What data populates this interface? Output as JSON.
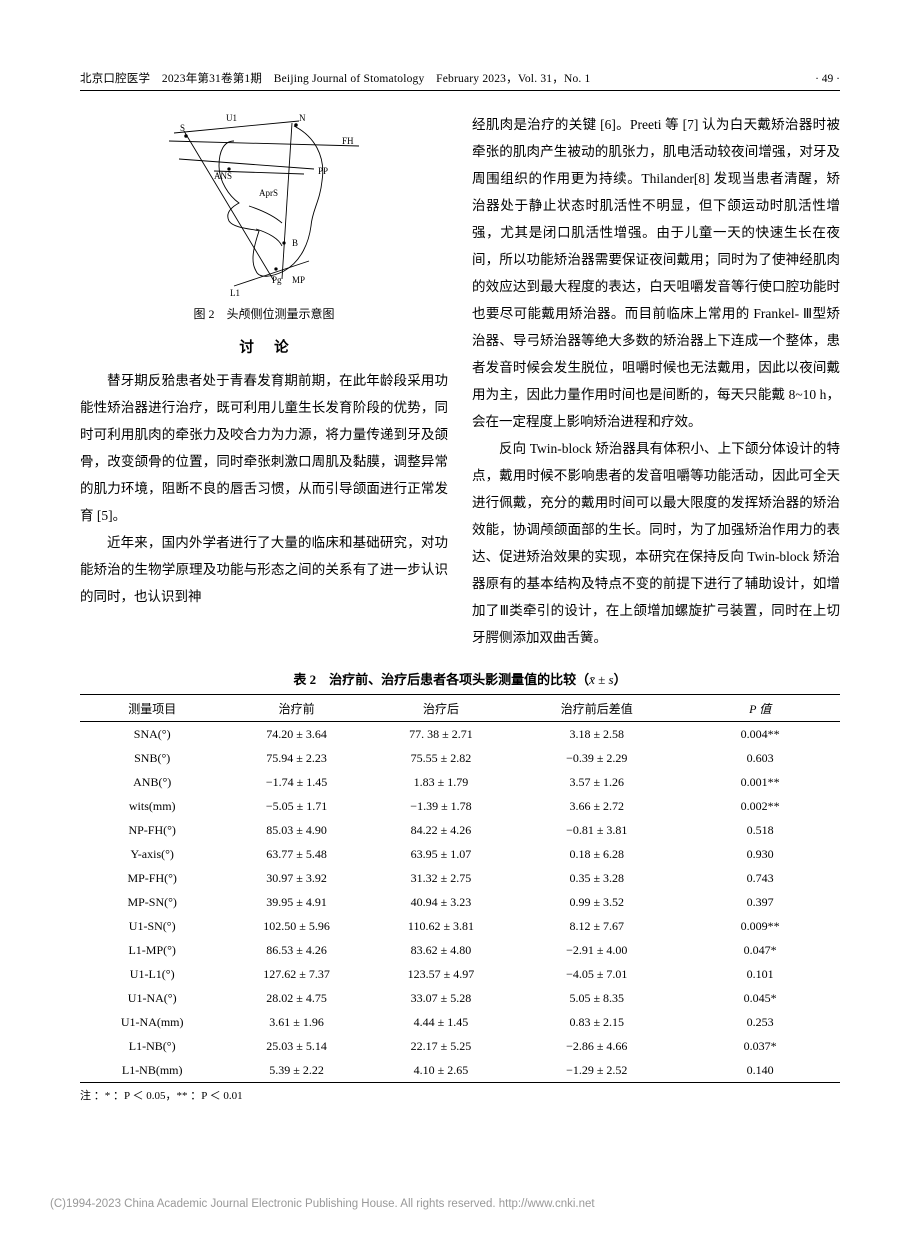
{
  "header": {
    "left": "北京口腔医学　2023年第31卷第1期　Beijing Journal of Stomatology　February 2023，Vol. 31，No. 1",
    "page": "· 49 ·"
  },
  "figure": {
    "caption": "图 2　头颅侧位测量示意图",
    "labels": {
      "S": "S",
      "U1": "U1",
      "N": "N",
      "FH": "FH",
      "PP": "PP",
      "ANS": "ANS",
      "AprS": "AprS",
      "B": "B",
      "Pg": "Pg",
      "L1": "L1",
      "MP": "MP"
    },
    "stroke": "#000000"
  },
  "discussion_heading": "讨论",
  "left_paragraphs": [
    "替牙期反𬌗患者处于青春发育期前期，在此年龄段采用功能性矫治器进行治疗，既可利用儿童生长发育阶段的优势，同时可利用肌肉的牵张力及咬合力为力源，将力量传递到牙及颌骨，改变颌骨的位置，同时牵张刺激口周肌及黏膜，调整异常的肌力环境，阻断不良的唇舌习惯，从而引导颌面进行正常发育 [5]。",
    "近年来，国内外学者进行了大量的临床和基础研究，对功能矫治的生物学原理及功能与形态之间的关系有了进一步认识的同时，也认识到神"
  ],
  "right_paragraphs": [
    "经肌肉是治疗的关键 [6]。Preeti 等 [7] 认为白天戴矫治器时被牵张的肌肉产生被动的肌张力，肌电活动较夜间增强，对牙及周围组织的作用更为持续。Thilander[8] 发现当患者清醒，矫治器处于静止状态时肌活性不明显，但下颌运动时肌活性增强，尤其是闭口肌活性增强。由于儿童一天的快速生长在夜间，所以功能矫治器需要保证夜间戴用；同时为了使神经肌肉的效应达到最大程度的表达，白天咀嚼发音等行使口腔功能时也要尽可能戴用矫治器。而目前临床上常用的 Frankel- Ⅲ型矫治器、导弓矫治器等绝大多数的矫治器上下连成一个整体，患者发音时候会发生脱位，咀嚼时候也无法戴用，因此以夜间戴用为主，因此力量作用时间也是间断的，每天只能戴 8~10 h，会在一定程度上影响矫治进程和疗效。",
    "反向 Twin-block 矫治器具有体积小、上下颌分体设计的特点，戴用时候不影响患者的发音咀嚼等功能活动，因此可全天进行佩戴，充分的戴用时间可以最大限度的发挥矫治器的矫治效能，协调颅颌面部的生长。同时，为了加强矫治作用力的表达、促进矫治效果的实现，本研究在保持反向 Twin-block 矫治器原有的基本结构及特点不变的前提下进行了辅助设计，如增加了Ⅲ类牵引的设计，在上颌增加螺旋扩弓装置，同时在上切牙腭侧添加双曲舌簧。"
  ],
  "table": {
    "caption_prefix": "表 2",
    "caption_text": "治疗前、治疗后患者各项头影测量值的比较（",
    "caption_stat": "x̄ ± s",
    "caption_suffix": "）",
    "columns": [
      "测量项目",
      "治疗前",
      "治疗后",
      "治疗前后差值",
      "P 值"
    ],
    "rows": [
      [
        "SNA(°)",
        "74.20 ± 3.64",
        "77. 38 ± 2.71",
        "3.18 ± 2.58",
        "0.004**"
      ],
      [
        "SNB(°)",
        "75.94 ± 2.23",
        "75.55 ± 2.82",
        "−0.39 ± 2.29",
        "0.603"
      ],
      [
        "ANB(°)",
        "−1.74 ± 1.45",
        "1.83 ± 1.79",
        "3.57 ± 1.26",
        "0.001**"
      ],
      [
        "wits(mm)",
        "−5.05 ± 1.71",
        "−1.39 ± 1.78",
        "3.66 ± 2.72",
        "0.002**"
      ],
      [
        "NP-FH(°)",
        "85.03 ± 4.90",
        "84.22 ± 4.26",
        "−0.81 ± 3.81",
        "0.518"
      ],
      [
        "Y-axis(°)",
        "63.77 ± 5.48",
        "63.95 ± 1.07",
        "0.18 ± 6.28",
        "0.930"
      ],
      [
        "MP-FH(°)",
        "30.97 ± 3.92",
        "31.32 ± 2.75",
        "0.35 ± 3.28",
        "0.743"
      ],
      [
        "MP-SN(°)",
        "39.95 ± 4.91",
        "40.94 ± 3.23",
        "0.99 ± 3.52",
        "0.397"
      ],
      [
        "U1-SN(°)",
        "102.50 ± 5.96",
        "110.62 ± 3.81",
        "8.12 ± 7.67",
        "0.009**"
      ],
      [
        "L1-MP(°)",
        "86.53 ± 4.26",
        "83.62 ± 4.80",
        "−2.91 ± 4.00",
        "0.047*"
      ],
      [
        "U1-L1(°)",
        "127.62 ± 7.37",
        "123.57 ± 4.97",
        "−4.05 ± 7.01",
        "0.101"
      ],
      [
        "U1-NA(°)",
        "28.02 ± 4.75",
        "33.07 ± 5.28",
        "5.05 ± 8.35",
        "0.045*"
      ],
      [
        "U1-NA(mm)",
        "3.61 ± 1.96",
        "4.44 ± 1.45",
        "0.83 ± 2.15",
        "0.253"
      ],
      [
        "L1-NB(°)",
        "25.03 ± 5.14",
        "22.17 ± 5.25",
        "−2.86 ± 4.66",
        "0.037*"
      ],
      [
        "L1-NB(mm)",
        "5.39 ± 2.22",
        "4.10 ± 2.65",
        "−1.29 ± 2.52",
        "0.140"
      ]
    ],
    "note": "注 ：* ：P ＜ 0.05，** ：P ＜ 0.01"
  },
  "footer": "(C)1994-2023 China Academic Journal Electronic Publishing House. All rights reserved.    http://www.cnki.net",
  "colors": {
    "text": "#000000",
    "background": "#ffffff",
    "footer": "#999999",
    "rule": "#000000"
  }
}
